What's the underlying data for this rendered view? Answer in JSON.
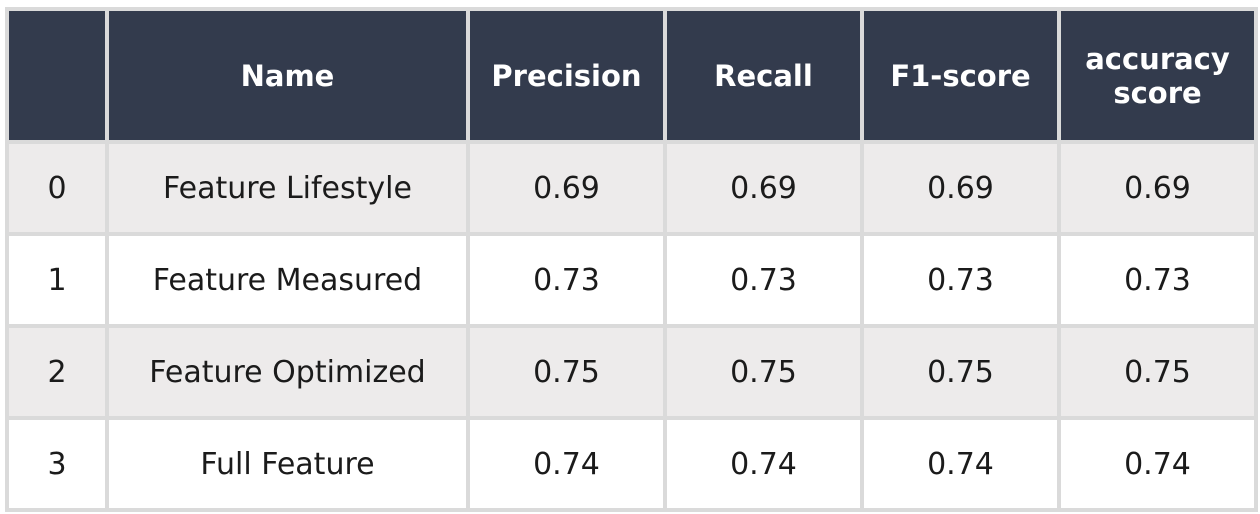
{
  "chart_data": {
    "type": "table",
    "columns": [
      "",
      "Name",
      "Precision",
      "Recall",
      "F1-score",
      "accuracy score"
    ],
    "rows": [
      {
        "index": "0",
        "name": "Feature Lifestyle",
        "precision": "0.69",
        "recall": "0.69",
        "f1": "0.69",
        "accuracy": "0.69"
      },
      {
        "index": "1",
        "name": "Feature Measured",
        "precision": "0.73",
        "recall": "0.73",
        "f1": "0.73",
        "accuracy": "0.73"
      },
      {
        "index": "2",
        "name": "Feature Optimized",
        "precision": "0.75",
        "recall": "0.75",
        "f1": "0.75",
        "accuracy": "0.75"
      },
      {
        "index": "3",
        "name": "Full Feature",
        "precision": "0.74",
        "recall": "0.74",
        "f1": "0.74",
        "accuracy": "0.74"
      }
    ]
  },
  "colors": {
    "header_bg": "#333b4d",
    "header_text": "#ffffff",
    "row_shaded": "#edebeb",
    "row_plain": "#ffffff",
    "grid_line": "#dadada"
  }
}
